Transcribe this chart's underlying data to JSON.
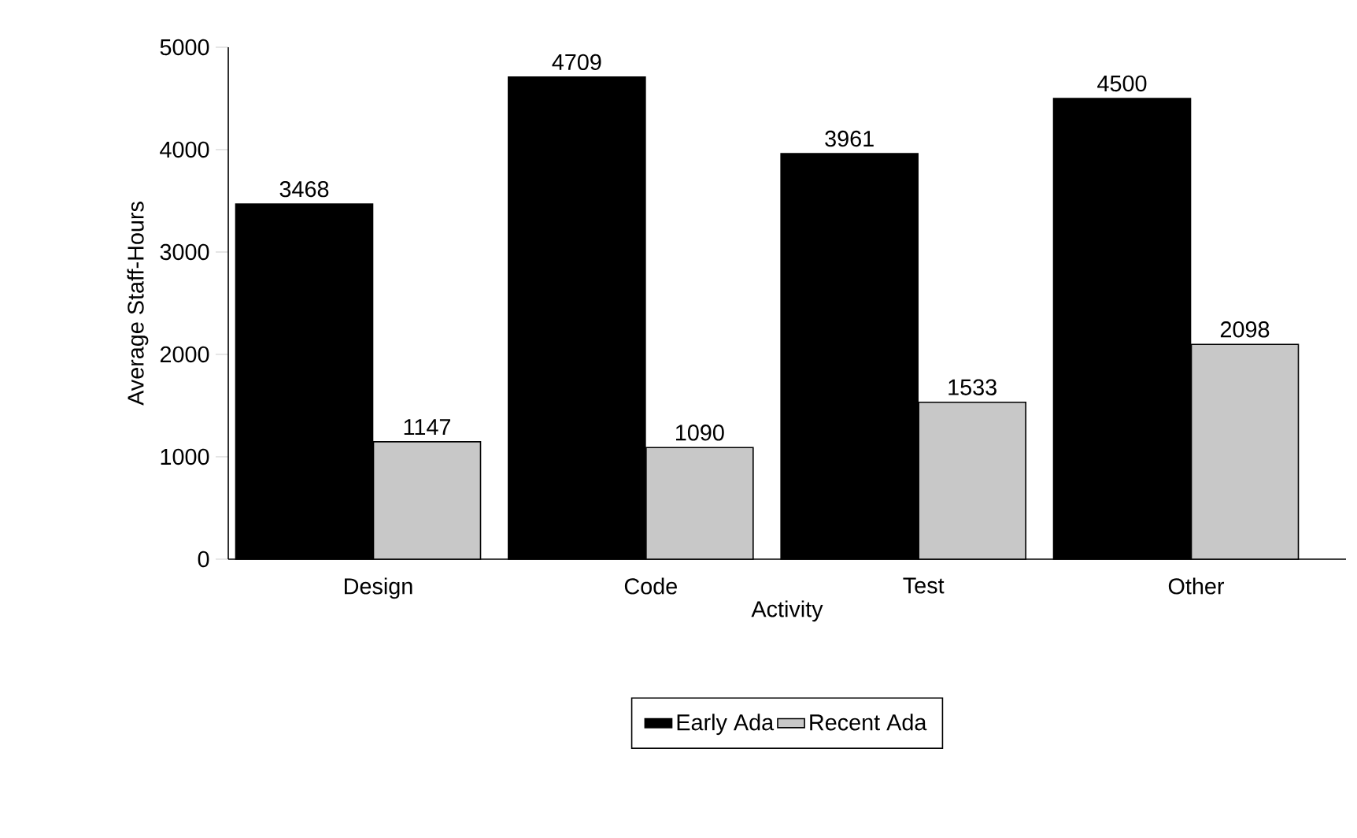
{
  "chart_data": {
    "type": "bar",
    "xlabel": "Activity",
    "ylabel": "Average Staff-Hours",
    "categories": [
      "Design",
      "Code",
      "Test",
      "Other"
    ],
    "series": [
      {
        "name": "Early Ada",
        "color": "#000000",
        "values": [
          3468,
          4709,
          3961,
          4500
        ]
      },
      {
        "name": "Recent Ada",
        "color": "#c8c8c8",
        "values": [
          1147,
          1090,
          1533,
          2098
        ]
      }
    ],
    "ylim": [
      0,
      5000
    ],
    "yticks": [
      0,
      1000,
      2000,
      3000,
      4000,
      5000
    ],
    "data_labels": true,
    "grid": false,
    "legend": "bottom"
  }
}
